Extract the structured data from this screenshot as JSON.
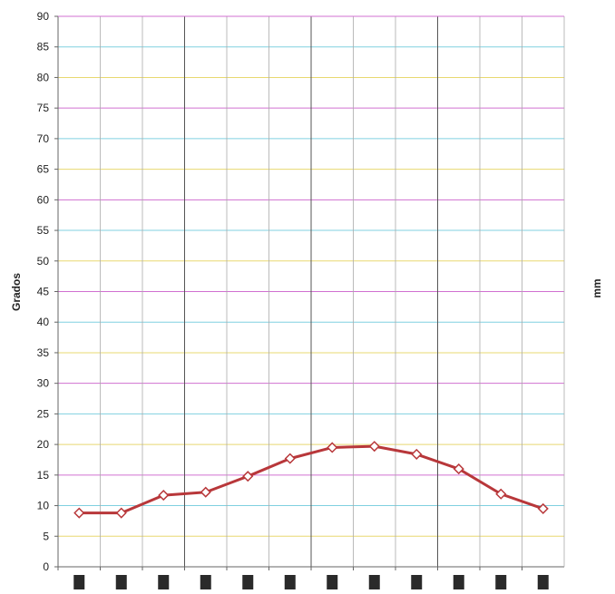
{
  "chart_data": {
    "type": "line",
    "title": "",
    "xlabel": "",
    "ylabel": "Grados",
    "y2label": "mm",
    "ylim": [
      0,
      90
    ],
    "ytick_step": 5,
    "yticks": [
      "0",
      "5",
      "10",
      "15",
      "20",
      "25",
      "30",
      "35",
      "40",
      "45",
      "50",
      "55",
      "60",
      "65",
      "70",
      "75",
      "80",
      "85",
      "90"
    ],
    "grid": true,
    "legend": "none",
    "x": [
      1,
      2,
      3,
      4,
      5,
      6,
      7,
      8,
      9,
      10,
      11,
      12
    ],
    "series": [
      {
        "name": "",
        "values": [
          8.8,
          8.8,
          11.7,
          12.2,
          14.8,
          17.7,
          19.5,
          19.7,
          18.4,
          16.0,
          11.9,
          9.5
        ],
        "color": "#b8373a",
        "marker": "diamond"
      }
    ]
  },
  "colors": {
    "grid_palette": [
      "#d070d0",
      "#e8d870",
      "#80d0e0"
    ],
    "major_vline": "#555555",
    "minor_vline": "#aaaaaa",
    "axis": "#666666"
  }
}
